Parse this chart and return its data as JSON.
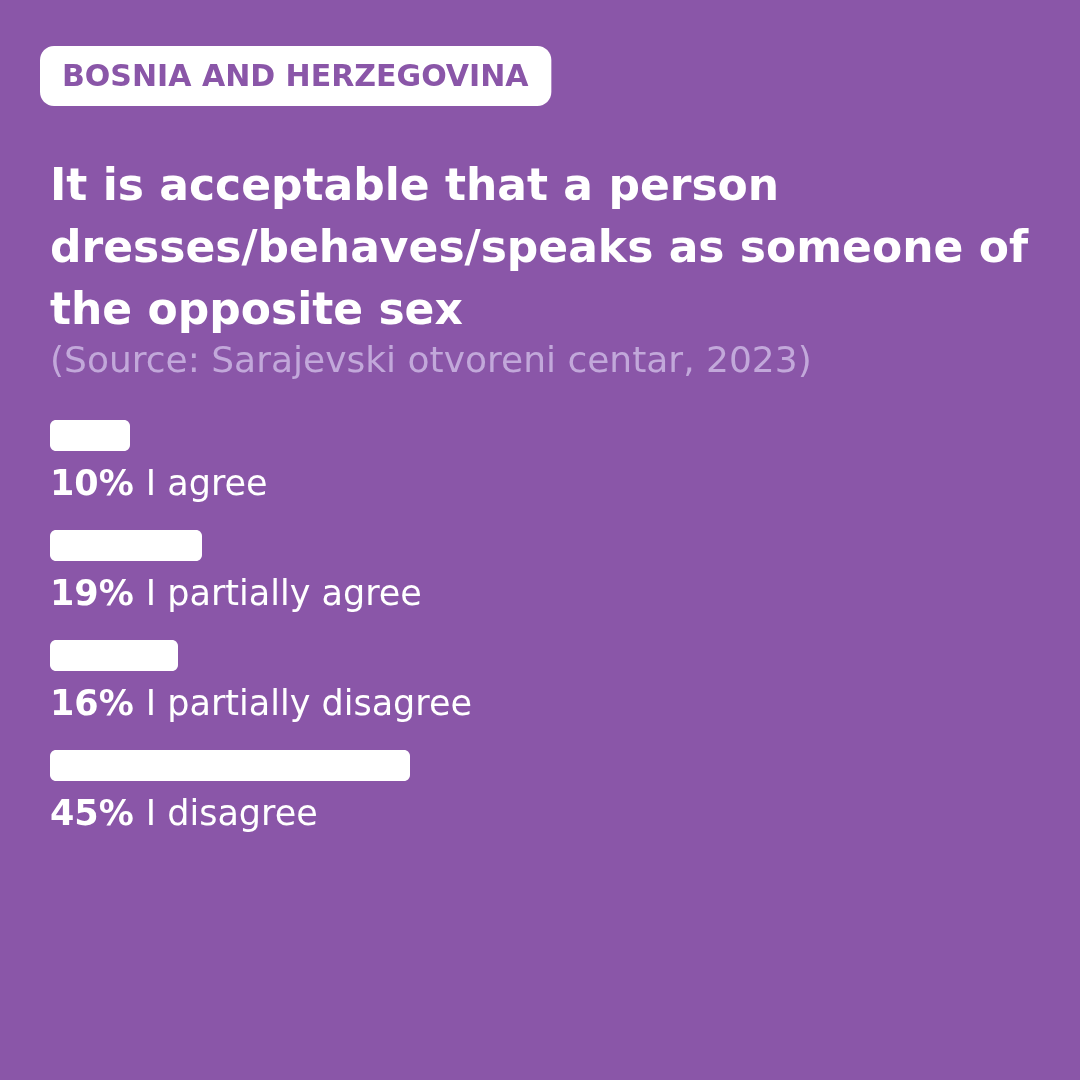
{
  "chart_data": {
    "type": "bar",
    "orientation": "horizontal",
    "subtitle": "BOSNIA AND HERZEGOVINA",
    "title": "It is acceptable that a person dresses/behaves/speaks as someone of the opposite sex",
    "annotations": [
      "(Source: Sarajevski otvoreni centar, 2023)"
    ],
    "categories": [
      "I agree",
      "I partially agree",
      "I partially disagree",
      "I disagree"
    ],
    "values": [
      10,
      19,
      16,
      45
    ],
    "value_labels": [
      "10%",
      "19%",
      "16%",
      "45%"
    ],
    "color": "#ffffff"
  }
}
